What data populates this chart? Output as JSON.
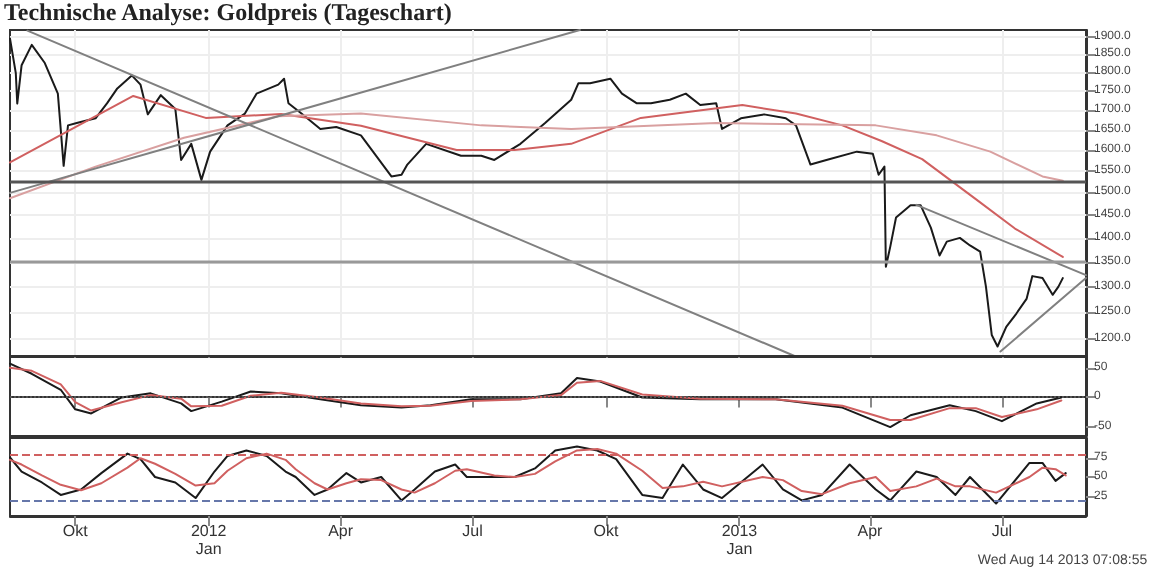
{
  "chart_data": [
    {
      "type": "line",
      "title": "Technische Analyse: Goldpreis (Tageschart)",
      "xlim": [
        "2011-08-17",
        "2013-08-28"
      ],
      "xticks": [
        {
          "value": "2011-10-01",
          "label": null
        },
        {
          "value": "2012-01-01",
          "label": null
        },
        {
          "value": "2012-04-01",
          "label": null
        },
        {
          "value": "2012-07-01",
          "label": null
        },
        {
          "value": "2012-10-01",
          "label": null
        },
        {
          "value": "2013-01-01",
          "label": null
        },
        {
          "value": "2013-04-01",
          "label": null
        },
        {
          "value": "2013-07-01",
          "label": null
        }
      ],
      "ylim": [
        1170,
        1920
      ],
      "log": true,
      "grid": true,
      "marker": "none",
      "tick_labels": "y",
      "yticks": [
        {
          "value": 1200,
          "label": "1200.0"
        },
        {
          "value": 1250,
          "label": "1250.0"
        },
        {
          "value": 1300,
          "label": "1300.0"
        },
        {
          "value": 1350,
          "label": "1350.0"
        },
        {
          "value": 1400,
          "label": "1400.0"
        },
        {
          "value": 1450,
          "label": "1450.0"
        },
        {
          "value": 1500,
          "label": "1500.0"
        },
        {
          "value": 1550,
          "label": "1550.0"
        },
        {
          "value": 1600,
          "label": "1600.0"
        },
        {
          "value": 1650,
          "label": "1650.0"
        },
        {
          "value": 1700,
          "label": "1700.0"
        },
        {
          "value": 1750,
          "label": "1750.0"
        },
        {
          "value": 1800,
          "label": "1800.0"
        },
        {
          "value": 1850,
          "label": "1850.0"
        },
        {
          "value": 1900,
          "label": "1900.0"
        }
      ],
      "series": [
        {
          "color": "#1a1a1a",
          "x": [
            "2011-08-17",
            "2011-08-21",
            "2011-08-22",
            "2011-08-25",
            "2011-09-01",
            "2011-09-10",
            "2011-09-19",
            "2011-09-23",
            "2011-09-26",
            "2011-10-02",
            "2011-10-15",
            "2011-10-23",
            "2011-10-30",
            "2011-11-09",
            "2011-11-15",
            "2011-11-20",
            "2011-11-29",
            "2011-12-09",
            "2011-12-13",
            "2011-12-20",
            "2011-12-27",
            "2012-01-02",
            "2012-01-14",
            "2012-01-26",
            "2012-02-03",
            "2012-02-18",
            "2012-02-22",
            "2012-02-25",
            "2012-03-05",
            "2012-03-18",
            "2012-03-29",
            "2012-04-15",
            "2012-05-06",
            "2012-05-13",
            "2012-05-17",
            "2012-05-30",
            "2012-06-23",
            "2012-07-07",
            "2012-07-16",
            "2012-08-03",
            "2012-08-20",
            "2012-09-07",
            "2012-09-12",
            "2012-09-20",
            "2012-10-04",
            "2012-10-12",
            "2012-10-22",
            "2012-11-01",
            "2012-11-14",
            "2012-11-25",
            "2012-12-05",
            "2012-12-16",
            "2012-12-20",
            "2013-01-02",
            "2013-01-18",
            "2013-02-02",
            "2013-02-09",
            "2013-02-19",
            "2013-03-02",
            "2013-03-23",
            "2013-04-03",
            "2013-04-07",
            "2013-04-11",
            "2013-04-12",
            "2013-04-15",
            "2013-04-19",
            "2013-04-29",
            "2013-05-06",
            "2013-05-13",
            "2013-05-19",
            "2013-05-24",
            "2013-06-02",
            "2013-06-09",
            "2013-06-16",
            "2013-06-20",
            "2013-06-24",
            "2013-06-28",
            "2013-07-04",
            "2013-07-11",
            "2013-07-18",
            "2013-07-22",
            "2013-07-29",
            "2013-08-05",
            "2013-08-09",
            "2013-08-12"
          ],
          "values": [
            1895,
            1798,
            1717,
            1820,
            1877,
            1826,
            1743,
            1562,
            1661,
            1667,
            1679,
            1718,
            1757,
            1792,
            1767,
            1689,
            1739,
            1703,
            1576,
            1615,
            1529,
            1596,
            1661,
            1691,
            1743,
            1767,
            1783,
            1718,
            1691,
            1652,
            1657,
            1636,
            1537,
            1541,
            1565,
            1615,
            1586,
            1586,
            1576,
            1615,
            1667,
            1727,
            1771,
            1771,
            1783,
            1743,
            1718,
            1718,
            1727,
            1743,
            1713,
            1718,
            1652,
            1679,
            1689,
            1679,
            1661,
            1565,
            1576,
            1596,
            1591,
            1541,
            1560,
            1340,
            1381,
            1444,
            1471,
            1471,
            1422,
            1363,
            1392,
            1400,
            1384,
            1371,
            1300,
            1208,
            1187,
            1223,
            1248,
            1276,
            1321,
            1317,
            1284,
            1300,
            1317
          ]
        },
        {
          "color": "#d06060",
          "x": [
            "2011-08-17",
            "2011-11-10",
            "2011-12-30",
            "2012-02-20",
            "2012-04-15",
            "2012-06-20",
            "2012-07-30",
            "2012-09-07",
            "2012-10-25",
            "2013-01-03",
            "2013-02-09",
            "2013-03-13",
            "2013-04-09",
            "2013-05-07",
            "2013-06-13",
            "2013-07-10",
            "2013-08-12"
          ],
          "values": [
            1570,
            1737,
            1680,
            1690,
            1660,
            1600,
            1600,
            1615,
            1680,
            1713,
            1691,
            1661,
            1622,
            1578,
            1485,
            1420,
            1360
          ]
        },
        {
          "color": "#d9a0a0",
          "x": [
            "2011-08-17",
            "2011-10-15",
            "2011-12-15",
            "2012-02-18",
            "2012-04-15",
            "2012-07-07",
            "2012-09-07",
            "2012-12-16",
            "2013-04-05",
            "2013-05-17",
            "2013-06-23",
            "2013-07-29",
            "2013-08-12"
          ],
          "values": [
            1487,
            1560,
            1630,
            1684,
            1691,
            1661,
            1652,
            1667,
            1661,
            1636,
            1596,
            1537,
            1527
          ]
        },
        {
          "color": "#808080",
          "x": [
            "2011-08-29",
            "2013-02-08"
          ],
          "values": [
            1918,
            1170
          ]
        },
        {
          "color": "#808080",
          "x": [
            "2011-08-17",
            "2012-09-13"
          ],
          "values": [
            1499,
            1920
          ]
        },
        {
          "color": "#808080",
          "x": [
            "2013-05-03",
            "2013-08-28"
          ],
          "values": [
            1472,
            1323
          ]
        },
        {
          "color": "#808080",
          "x": [
            "2013-06-30",
            "2013-08-28"
          ],
          "values": [
            1178,
            1317
          ]
        }
      ],
      "ref_lines": [
        {
          "axis": "y",
          "value": 1525,
          "color": "#555555"
        },
        {
          "axis": "y",
          "value": 1350,
          "color": "#999999"
        }
      ]
    },
    {
      "type": "line",
      "xlim": [
        "2011-08-17",
        "2013-08-28"
      ],
      "xticks": [
        {
          "value": "2011-10-01",
          "label": null
        },
        {
          "value": "2012-01-01",
          "label": null
        },
        {
          "value": "2012-04-01",
          "label": null
        },
        {
          "value": "2012-07-01",
          "label": null
        },
        {
          "value": "2012-10-01",
          "label": null
        },
        {
          "value": "2013-01-01",
          "label": null
        },
        {
          "value": "2013-04-01",
          "label": null
        },
        {
          "value": "2013-07-01",
          "label": null
        }
      ],
      "ylim": [
        -65,
        70
      ],
      "yticks": [
        -50,
        0,
        50
      ],
      "marker": "none",
      "tick_labels": "y",
      "series": [
        {
          "color": "#1a1a1a",
          "x": [
            "2011-08-17",
            "2011-09-01",
            "2011-09-21",
            "2011-10-01",
            "2011-10-12",
            "2011-11-02",
            "2011-11-22",
            "2011-12-13",
            "2011-12-20",
            "2012-01-10",
            "2012-01-30",
            "2012-02-20",
            "2012-03-18",
            "2012-04-15",
            "2012-05-13",
            "2012-06-02",
            "2012-06-30",
            "2012-08-03",
            "2012-08-31",
            "2012-09-11",
            "2012-09-27",
            "2012-10-26",
            "2012-12-05",
            "2013-01-26",
            "2013-03-13",
            "2013-04-15",
            "2013-04-29",
            "2013-05-26",
            "2013-06-13",
            "2013-07-01",
            "2013-07-25",
            "2013-08-11"
          ],
          "values": [
            57,
            40,
            13,
            -20,
            -27,
            0,
            7,
            -10,
            -23,
            -7,
            10,
            7,
            -3,
            -13,
            -17,
            -13,
            -3,
            -3,
            7,
            33,
            27,
            0,
            -3,
            -3,
            -17,
            -50,
            -30,
            -13,
            -23,
            -40,
            -10,
            0
          ]
        },
        {
          "color": "#d06060",
          "x": [
            "2011-08-17",
            "2011-09-01",
            "2011-09-21",
            "2011-10-01",
            "2011-10-12",
            "2011-11-02",
            "2011-11-22",
            "2011-12-13",
            "2011-12-20",
            "2012-01-10",
            "2012-01-30",
            "2012-02-20",
            "2012-03-18",
            "2012-04-15",
            "2012-05-13",
            "2012-06-02",
            "2012-06-30",
            "2012-08-03",
            "2012-08-31",
            "2012-09-11",
            "2012-09-27",
            "2012-10-26",
            "2012-12-05",
            "2013-01-26",
            "2013-03-13",
            "2013-04-15",
            "2013-04-29",
            "2013-05-26",
            "2013-06-13",
            "2013-07-01",
            "2013-07-25",
            "2013-08-11"
          ],
          "values": [
            50,
            45,
            22,
            -8,
            -22,
            -8,
            4,
            -2,
            -15,
            -14,
            3,
            8,
            0,
            -10,
            -15,
            -14,
            -6,
            -3,
            4,
            25,
            28,
            5,
            -2,
            -3,
            -14,
            -38,
            -38,
            -18,
            -18,
            -33,
            -20,
            -5
          ]
        }
      ],
      "ref_lines": [
        {
          "axis": "y",
          "value": 0,
          "color": "#555555",
          "line_style": "dotted"
        }
      ]
    },
    {
      "type": "line",
      "xlim": [
        "2011-08-17",
        "2013-08-28"
      ],
      "xticks": [
        {
          "value": "2011-10-01",
          "label": "Okt"
        },
        {
          "value": "2012-01-01",
          "label": "2012\nJan"
        },
        {
          "value": "2012-04-01",
          "label": "Apr"
        },
        {
          "value": "2012-07-01",
          "label": "Jul"
        },
        {
          "value": "2012-10-01",
          "label": "Okt"
        },
        {
          "value": "2013-01-01",
          "label": "2013\nJan"
        },
        {
          "value": "2013-04-01",
          "label": "Apr"
        },
        {
          "value": "2013-07-01",
          "label": "Jul"
        }
      ],
      "ylim": [
        0,
        100
      ],
      "yticks": [
        25,
        50,
        75
      ],
      "marker": "none",
      "series": [
        {
          "color": "#1a1a1a",
          "x": [
            "2011-08-17",
            "2011-08-25",
            "2011-09-08",
            "2011-09-21",
            "2011-10-05",
            "2011-10-19",
            "2011-11-06",
            "2011-11-15",
            "2011-11-25",
            "2011-12-09",
            "2011-12-23",
            "2012-01-05",
            "2012-01-14",
            "2012-01-27",
            "2012-02-10",
            "2012-02-23",
            "2012-03-01",
            "2012-03-14",
            "2012-03-23",
            "2012-04-05",
            "2012-04-15",
            "2012-04-29",
            "2012-05-13",
            "2012-05-22",
            "2012-06-05",
            "2012-06-19",
            "2012-06-27",
            "2012-07-16",
            "2012-07-30",
            "2012-08-13",
            "2012-08-27",
            "2012-09-11",
            "2012-09-25",
            "2012-10-08",
            "2012-10-26",
            "2012-11-09",
            "2012-11-23",
            "2012-12-07",
            "2012-12-20",
            "2013-01-17",
            "2013-01-31",
            "2013-02-13",
            "2013-02-27",
            "2013-03-18",
            "2013-04-05",
            "2013-04-15",
            "2013-05-03",
            "2013-05-17",
            "2013-05-30",
            "2013-06-09",
            "2013-06-27",
            "2013-07-20",
            "2013-07-29",
            "2013-08-07",
            "2013-08-14"
          ],
          "values": [
            75,
            57,
            43,
            27,
            34,
            55,
            80,
            73,
            50,
            43,
            23,
            57,
            77,
            84,
            77,
            57,
            50,
            27,
            34,
            55,
            43,
            50,
            20,
            34,
            57,
            66,
            50,
            50,
            50,
            61,
            84,
            89,
            84,
            73,
            27,
            23,
            66,
            34,
            23,
            66,
            34,
            20,
            27,
            66,
            34,
            20,
            57,
            50,
            27,
            50,
            16,
            68,
            68,
            45,
            55
          ]
        },
        {
          "color": "#d06060",
          "x": [
            "2011-08-17",
            "2011-08-25",
            "2011-09-08",
            "2011-09-21",
            "2011-10-05",
            "2011-10-19",
            "2011-11-06",
            "2011-11-15",
            "2011-11-25",
            "2011-12-09",
            "2011-12-23",
            "2012-01-05",
            "2012-01-14",
            "2012-01-27",
            "2012-02-10",
            "2012-02-23",
            "2012-03-01",
            "2012-03-14",
            "2012-03-23",
            "2012-04-05",
            "2012-04-15",
            "2012-04-29",
            "2012-05-13",
            "2012-05-22",
            "2012-06-05",
            "2012-06-19",
            "2012-06-27",
            "2012-07-16",
            "2012-07-30",
            "2012-08-13",
            "2012-08-27",
            "2012-09-11",
            "2012-09-25",
            "2012-10-08",
            "2012-10-26",
            "2012-11-09",
            "2012-11-23",
            "2012-12-07",
            "2012-12-20",
            "2013-01-17",
            "2013-01-31",
            "2013-02-13",
            "2013-02-27",
            "2013-03-18",
            "2013-04-05",
            "2013-04-15",
            "2013-05-03",
            "2013-05-17",
            "2013-05-30",
            "2013-06-09",
            "2013-06-27",
            "2013-07-20",
            "2013-07-29",
            "2013-08-07",
            "2013-08-14"
          ],
          "values": [
            72,
            66,
            52,
            40,
            33,
            42,
            62,
            74,
            67,
            54,
            39,
            42,
            58,
            74,
            80,
            72,
            60,
            42,
            34,
            42,
            47,
            46,
            34,
            30,
            42,
            58,
            60,
            52,
            50,
            54,
            70,
            84,
            86,
            80,
            58,
            36,
            38,
            44,
            38,
            50,
            46,
            32,
            28,
            42,
            50,
            32,
            38,
            48,
            38,
            38,
            30,
            50,
            62,
            60,
            52
          ]
        }
      ],
      "ref_lines": [
        {
          "axis": "y",
          "value": 80,
          "color": "#d06060",
          "line_style": "dashed"
        },
        {
          "axis": "y",
          "value": 20,
          "color": "#6677aa",
          "line_style": "dashed"
        }
      ],
      "annotations": [
        "Wed Aug 14 2013 07:08:55"
      ]
    }
  ]
}
